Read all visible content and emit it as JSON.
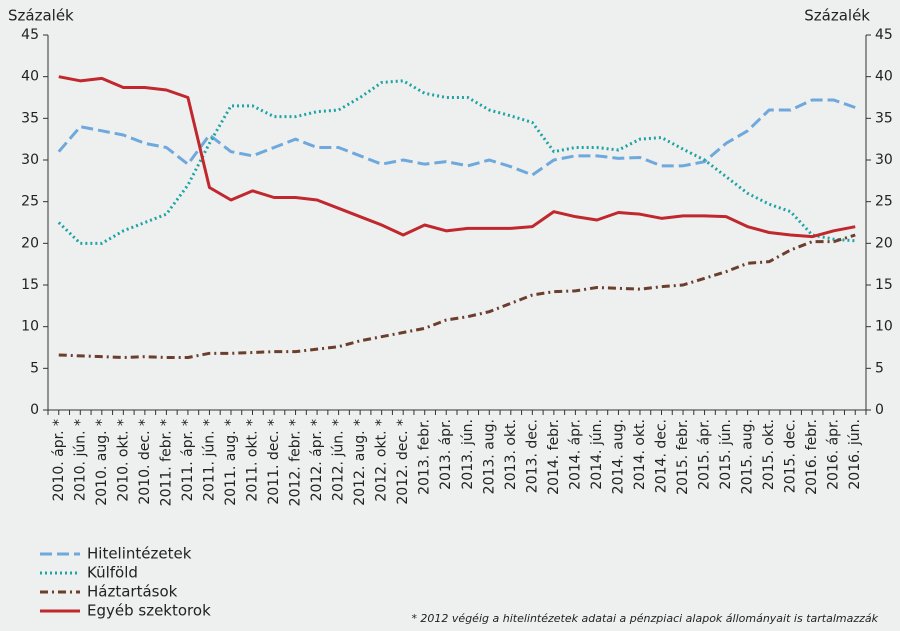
{
  "chart_data": {
    "type": "line",
    "y_label": "Százalék",
    "y2_label": "Százalék",
    "note": "* 2012 végéig a hitelintézetek adatai a pénzpiaci alapok állományait is tartalmazzák",
    "categories": [
      "2010. ápr. *",
      "2010. jún. *",
      "2010. aug. *",
      "2010. okt. *",
      "2010. dec. *",
      "2011. febr. *",
      "2011. ápr. *",
      "2011. jún. *",
      "2011. aug. *",
      "2011. okt. *",
      "2011. dec. *",
      "2012. febr. *",
      "2012. ápr. *",
      "2012. jún. *",
      "2012. aug. *",
      "2012. okt. *",
      "2012. dec. *",
      "2013. febr.",
      "2013. ápr.",
      "2013. jún.",
      "2013. aug.",
      "2013. okt.",
      "2013. dec.",
      "2014. febr.",
      "2014. ápr.",
      "2014. jún.",
      "2014. aug.",
      "2014. okt.",
      "2014. dec.",
      "2015. febr.",
      "2015. ápr.",
      "2015. jún.",
      "2015. aug.",
      "2015. okt.",
      "2015. dec.",
      "2016. febr.",
      "2016. ápr.",
      "2016. jún."
    ],
    "series": [
      {
        "name": "Hitelintézetek",
        "color": "#6fa8dc",
        "dash": "12,5",
        "values": [
          31,
          34,
          33.5,
          33,
          32,
          31.5,
          29.5,
          33,
          31,
          30.5,
          31.5,
          32.5,
          31.5,
          31.5,
          30.5,
          29.5,
          30,
          29.5,
          29.8,
          29.3,
          30,
          29.2,
          28.2,
          30,
          30.5,
          30.5,
          30.2,
          30.3,
          29.3,
          29.3,
          29.8,
          32,
          33.5,
          36,
          36,
          37.2,
          37.2,
          36.3
        ]
      },
      {
        "name": "Külföld",
        "color": "#1fa3a3",
        "dash": "2,3",
        "values": [
          22.5,
          20,
          20,
          21.5,
          22.5,
          23.5,
          27,
          32,
          36.5,
          36.5,
          35.2,
          35.2,
          35.8,
          36,
          37.5,
          39.3,
          39.5,
          38,
          37.5,
          37.5,
          36,
          35.3,
          34.5,
          31,
          31.5,
          31.5,
          31.2,
          32.5,
          32.7,
          31.3,
          30,
          28,
          26,
          24.7,
          23.8,
          21,
          20.5,
          20.3
        ]
      },
      {
        "name": "Háztartások",
        "color": "#6b3e2e",
        "dash": "8,4,2,4",
        "values": [
          6.6,
          6.5,
          6.4,
          6.3,
          6.4,
          6.3,
          6.3,
          6.8,
          6.8,
          6.9,
          7.0,
          7.0,
          7.3,
          7.6,
          8.3,
          8.8,
          9.3,
          9.8,
          10.8,
          11.2,
          11.8,
          12.8,
          13.8,
          14.2,
          14.3,
          14.7,
          14.6,
          14.5,
          14.8,
          15.0,
          15.8,
          16.6,
          17.6,
          17.8,
          19.2,
          20.2,
          20.2,
          21.0
        ]
      },
      {
        "name": "Egyéb szektorok",
        "color": "#c0282d",
        "dash": "none",
        "values": [
          40,
          39.5,
          39.8,
          38.7,
          38.7,
          38.4,
          37.5,
          26.7,
          25.2,
          26.3,
          25.5,
          25.5,
          25.2,
          24.2,
          23.2,
          22.2,
          21,
          22.2,
          21.5,
          21.8,
          21.8,
          21.8,
          22,
          23.8,
          23.2,
          22.8,
          23.7,
          23.5,
          23,
          23.3,
          23.3,
          23.2,
          22,
          21.3,
          21,
          20.8,
          21.5,
          22
        ]
      }
    ],
    "ylim": [
      0,
      45
    ],
    "yticks": [
      0,
      5,
      10,
      15,
      20,
      25,
      30,
      35,
      40,
      45
    ],
    "y2lim": [
      0,
      45
    ],
    "y2ticks": [
      0,
      5,
      10,
      15,
      20,
      25,
      30,
      35,
      40,
      45
    ],
    "legend": "bottom-left"
  }
}
